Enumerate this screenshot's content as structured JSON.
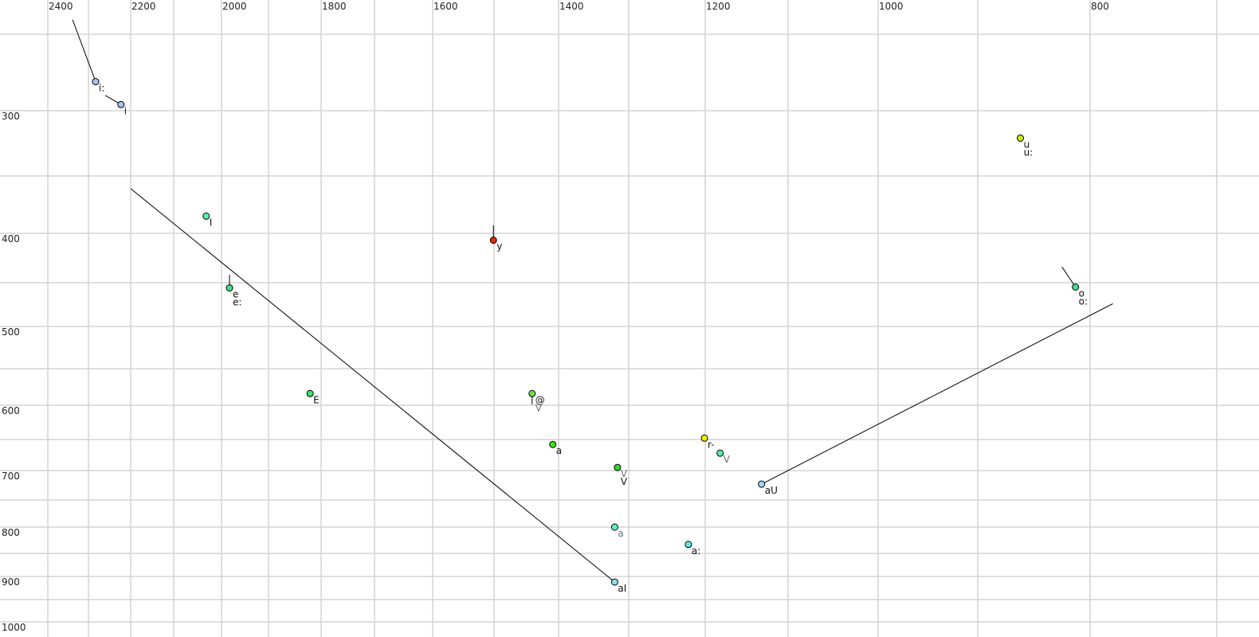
{
  "chart_data": {
    "type": "scatter",
    "title": "",
    "xlabel": "",
    "ylabel": "",
    "x_axis": {
      "reversed": true,
      "ticks_labeled": [
        2400,
        2200,
        2000,
        1800,
        1600,
        1400,
        1200,
        1000,
        800
      ],
      "grid": [
        2400,
        2300,
        2200,
        2100,
        2000,
        1900,
        1800,
        1700,
        1600,
        1500,
        1400,
        1300,
        1200,
        1100,
        1000,
        900,
        800,
        700
      ]
    },
    "y_axis": {
      "reversed": false,
      "ticks_labeled": [
        300,
        400,
        500,
        600,
        700,
        800,
        900,
        1000
      ],
      "grid": [
        250,
        300,
        350,
        400,
        450,
        500,
        550,
        600,
        650,
        700,
        750,
        800,
        850,
        900,
        950,
        1000
      ]
    },
    "grid": true,
    "points": [
      {
        "f2": 2283,
        "f1": 281,
        "color": "#a8c4f4",
        "labels": [
          {
            "text": "i:",
            "muted": false
          }
        ],
        "from": [
          2339,
          239
        ]
      },
      {
        "f2": 2223,
        "f1": 296,
        "color": "#a8c4f4",
        "labels": [
          {
            "text": "i",
            "muted": false
          }
        ],
        "from": [
          2260,
          290
        ]
      },
      {
        "f2": 2032,
        "f1": 385,
        "color": "#5cf0b0",
        "labels": [
          {
            "text": "I",
            "muted": false
          }
        ]
      },
      {
        "f2": 1983,
        "f1": 456,
        "color": "#40e080",
        "labels": [
          {
            "text": "e",
            "muted": false
          },
          {
            "text": "e:",
            "muted": false
          }
        ],
        "from": [
          1983,
          442
        ]
      },
      {
        "f2": 1821,
        "f1": 584,
        "color": "#40e070",
        "labels": [
          {
            "text": "E",
            "muted": false
          }
        ]
      },
      {
        "f2": 1501,
        "f1": 407,
        "color": "#e03010",
        "labels": [
          {
            "text": "y",
            "muted": false
          }
        ],
        "from": [
          1501,
          393
        ]
      },
      {
        "f2": 1441,
        "f1": 584,
        "color": "#70e050",
        "labels": [
          {
            "text": "@",
            "muted": false
          },
          {
            "text": "V",
            "muted": true
          }
        ],
        "to": [
          1441,
          599
        ]
      },
      {
        "f2": 1409,
        "f1": 658,
        "color": "#40e020",
        "labels": [
          {
            "text": "a",
            "muted": false
          }
        ]
      },
      {
        "f2": 1316,
        "f1": 695,
        "color": "#30d830",
        "labels": [
          {
            "text": "V",
            "muted": true
          },
          {
            "text": "V",
            "muted": false
          }
        ]
      },
      {
        "f2": 1320,
        "f1": 800,
        "color": "#60f0c8",
        "labels": [
          {
            "text": "a",
            "muted": true
          }
        ]
      },
      {
        "f2": 1320,
        "f1": 912,
        "color": "#90e0f0",
        "labels": [
          {
            "text": "aI",
            "muted": false
          }
        ],
        "from": [
          2200,
          361
        ]
      },
      {
        "f2": 1222,
        "f1": 833,
        "color": "#60e8f0",
        "labels": [
          {
            "text": "a:",
            "muted": false
          }
        ]
      },
      {
        "f2": 1201,
        "f1": 648,
        "color": "#f0f000",
        "labels": [
          {
            "text": "r-",
            "muted": false
          }
        ],
        "from": [
          1201,
          643
        ]
      },
      {
        "f2": 1182,
        "f1": 672,
        "color": "#60e8a8",
        "labels": [
          {
            "text": "V",
            "muted": true
          }
        ]
      },
      {
        "f2": 1132,
        "f1": 723,
        "color": "#a0d8f4",
        "labels": [
          {
            "text": "aU",
            "muted": false
          }
        ],
        "to": [
          782,
          474
        ]
      },
      {
        "f2": 862,
        "f1": 321,
        "color": "#c8f000",
        "labels": [
          {
            "text": "u",
            "muted": false
          },
          {
            "text": "u:",
            "muted": false
          }
        ]
      },
      {
        "f2": 813,
        "f1": 455,
        "color": "#40e090",
        "labels": [
          {
            "text": "o",
            "muted": false
          },
          {
            "text": "o:",
            "muted": false
          }
        ],
        "from": [
          825,
          434
        ]
      }
    ]
  }
}
